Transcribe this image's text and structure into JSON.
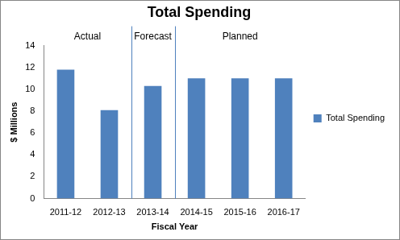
{
  "chart_data": {
    "type": "bar",
    "title": "Total Spending",
    "x_label": "Fiscal Year",
    "y_label": "$ Millions",
    "categories": [
      "2011-12",
      "2012-13",
      "2013-14",
      "2014-15",
      "2015-16",
      "2016-17"
    ],
    "series": [
      {
        "name": "Total Spending",
        "color": "#4f81bd",
        "values": [
          11.8,
          8.1,
          10.3,
          11.0,
          11.0,
          11.0
        ]
      }
    ],
    "ylim": [
      0,
      14
    ],
    "yticks": [
      0,
      2,
      4,
      6,
      8,
      10,
      12,
      14
    ],
    "grid": false,
    "legend": "right",
    "annotations": [
      {
        "label": "Actual",
        "categories": [
          "2011-12",
          "2012-13"
        ]
      },
      {
        "label": "Forecast",
        "categories": [
          "2013-14"
        ]
      },
      {
        "label": "Planned",
        "categories": [
          "2014-15",
          "2015-16",
          "2016-17"
        ]
      }
    ]
  }
}
